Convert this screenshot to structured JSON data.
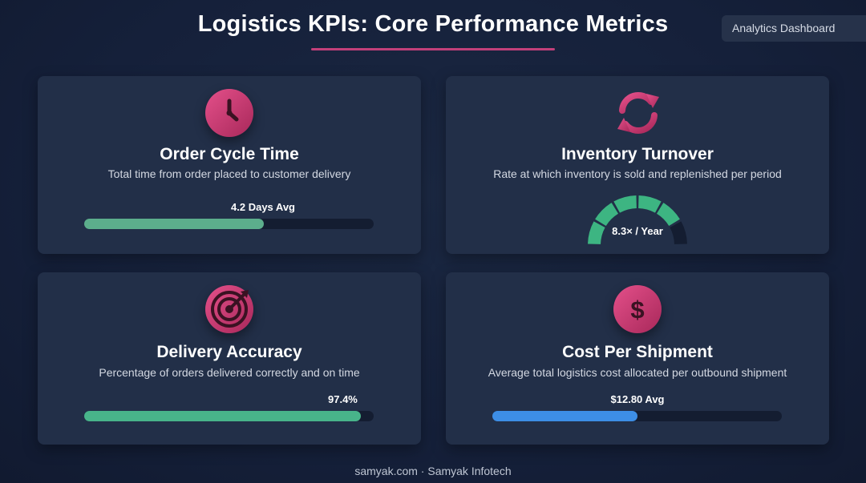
{
  "header": {
    "title": "Logistics KPIs: Core Performance Metrics",
    "badge": "Analytics Dashboard"
  },
  "cards": [
    {
      "title": "Order Cycle Time",
      "description": "Total time from order placed to customer delivery",
      "metric_label": "4.2 Days Avg",
      "progress": 0.62,
      "bar_color": "#5cae8c",
      "icon": "clock-icon"
    },
    {
      "title": "Inventory Turnover",
      "description": "Rate at which inventory is sold and replenished per period",
      "metric_label": "8.3× / Year",
      "gauge_filled_segments": 5,
      "gauge_total_segments": 6,
      "gauge_color": "#3db582",
      "icon": "refresh-icon"
    },
    {
      "title": "Delivery Accuracy",
      "description": "Percentage of orders delivered correctly and on time",
      "metric_label": "97.4%",
      "progress": 0.955,
      "bar_color": "#48b48a",
      "icon": "target-icon"
    },
    {
      "title": "Cost Per Shipment",
      "description": "Average total logistics cost allocated per outbound shipment",
      "metric_label": "$12.80 Avg",
      "progress": 0.5,
      "bar_color": "#3d8ee6",
      "icon": "dollar-icon"
    }
  ],
  "footer": "samyak.com · Samyak Infotech",
  "colors": {
    "accent": "#c2407a",
    "background": "#16223a",
    "card": "#222f48"
  }
}
